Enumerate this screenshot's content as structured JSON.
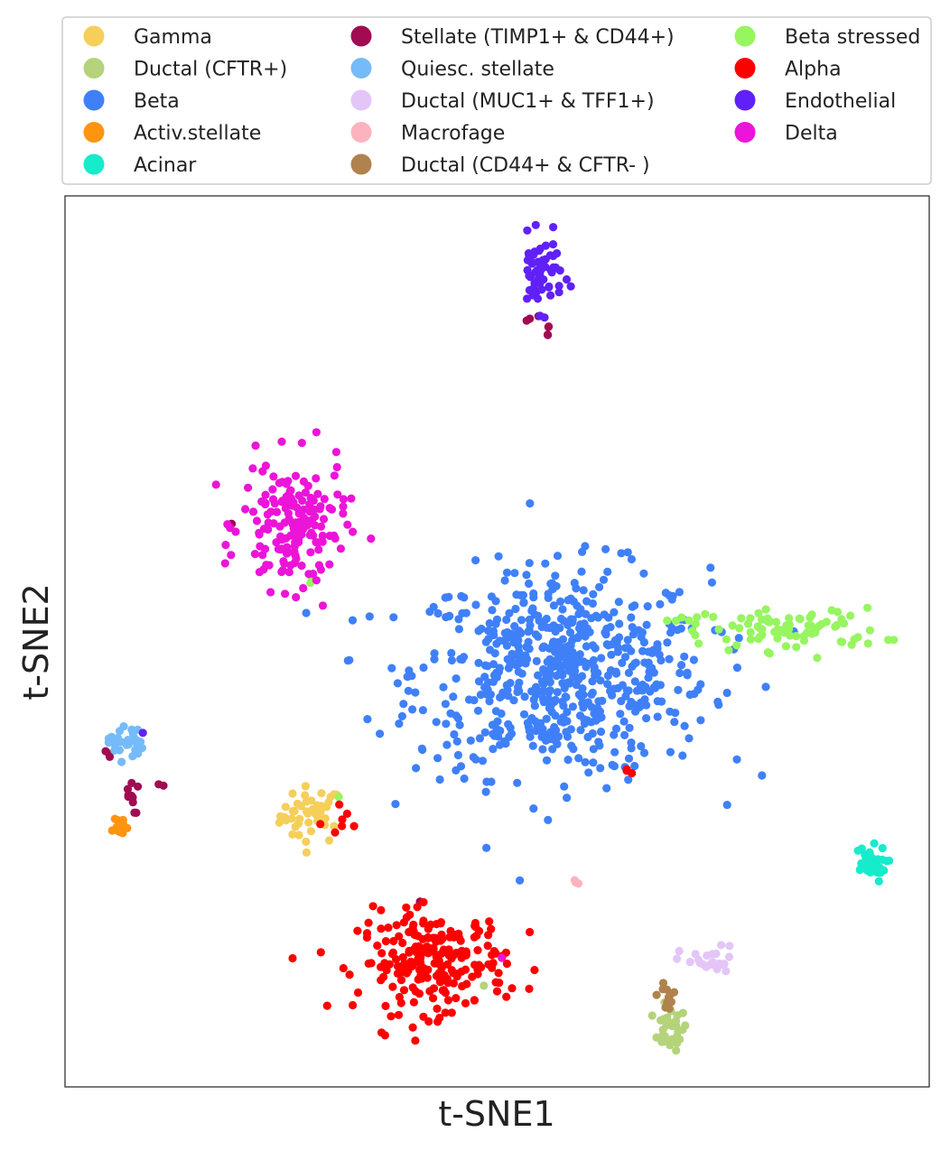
{
  "chart_data": {
    "type": "scatter",
    "xlabel": "t-SNE1",
    "ylabel": "t-SNE2",
    "xlim": [
      0,
      100
    ],
    "ylim": [
      0,
      100
    ],
    "grid": false,
    "ticks": false,
    "legend_position": "top (outside plot, 3 columns)",
    "series": [
      {
        "name": "Gamma",
        "color": "#F5CF5A",
        "clusters": [
          {
            "center": [
              28.5,
              30.5
            ],
            "spread": [
              1.8,
              1.6
            ],
            "count": 45
          }
        ]
      },
      {
        "name": "Ductal (CFTR+)",
        "color": "#B4D37A",
        "clusters": [
          {
            "center": [
              70.0,
              6.5
            ],
            "spread": [
              1.0,
              1.2
            ],
            "count": 30
          },
          {
            "center": [
              48.5,
              11.5
            ],
            "spread": [
              0.3,
              0.3
            ],
            "count": 1
          }
        ]
      },
      {
        "name": "Beta",
        "color": "#3F80F9",
        "clusters": [
          {
            "center": [
              57.5,
              46.5
            ],
            "spread": [
              8.5,
              5.8
            ],
            "count": 650
          }
        ]
      },
      {
        "name": "Activ.stellate",
        "color": "#FF940F",
        "clusters": [
          {
            "center": [
              6.1,
              29.3
            ],
            "spread": [
              0.6,
              0.6
            ],
            "count": 16
          }
        ]
      },
      {
        "name": "Acinar",
        "color": "#16EBCC",
        "clusters": [
          {
            "center": [
              93.0,
              25.0
            ],
            "spread": [
              1.0,
              1.0
            ],
            "count": 35
          }
        ]
      },
      {
        "name": "Stellate (TIMP1+ & CD44+)",
        "color": "#A10B52",
        "clusters": [
          {
            "center": [
              7.5,
              32.6
            ],
            "spread": [
              0.5,
              1.0
            ],
            "count": 10
          },
          {
            "center": [
              11.2,
              33.9
            ],
            "spread": [
              0.2,
              0.2
            ],
            "count": 2
          },
          {
            "center": [
              5.2,
              37.3
            ],
            "spread": [
              0.3,
              0.2
            ],
            "count": 3
          },
          {
            "center": [
              19.2,
              63.0
            ],
            "spread": [
              0.2,
              0.2
            ],
            "count": 2
          },
          {
            "center": [
              53.9,
              86.3
            ],
            "spread": [
              0.4,
              0.2
            ],
            "count": 3
          },
          {
            "center": [
              55.7,
              85.0
            ],
            "spread": [
              0.2,
              0.4
            ],
            "count": 4
          },
          {
            "center": [
              41.1,
              21.1
            ],
            "spread": [
              0.2,
              0.2
            ],
            "count": 1
          }
        ]
      },
      {
        "name": "Quiesc. stellate",
        "color": "#75BBFA",
        "clusters": [
          {
            "center": [
              7.0,
              38.7
            ],
            "spread": [
              1.0,
              1.0
            ],
            "count": 30
          }
        ]
      },
      {
        "name": "Ductal (MUC1+ & TFF1+)",
        "color": "#E3C6F7",
        "clusters": [
          {
            "center": [
              74.5,
              14.0
            ],
            "spread": [
              1.7,
              0.9
            ],
            "count": 25
          }
        ]
      },
      {
        "name": "Macrofage",
        "color": "#FDB3BF",
        "clusters": [
          {
            "center": [
              59.2,
              22.9
            ],
            "spread": [
              0.2,
              0.3
            ],
            "count": 3
          }
        ]
      },
      {
        "name": "Ductal (CD44+ & CFTR- )",
        "color": "#B0824E",
        "clusters": [
          {
            "center": [
              69.8,
              10.2
            ],
            "spread": [
              0.6,
              0.9
            ],
            "count": 12
          }
        ]
      },
      {
        "name": "Beta stressed",
        "color": "#97F560",
        "clusters": [
          {
            "center": [
              84.5,
              51.3
            ],
            "spread": [
              5.0,
              1.2
            ],
            "count": 80
          },
          {
            "center": [
              28.5,
              56.5
            ],
            "spread": [
              0.2,
              0.4
            ],
            "count": 3
          },
          {
            "center": [
              72.0,
              52.0
            ],
            "spread": [
              1.2,
              0.8
            ],
            "count": 8
          },
          {
            "center": [
              31.6,
              32.9
            ],
            "spread": [
              0.2,
              0.2
            ],
            "count": 1
          }
        ]
      },
      {
        "name": "Alpha",
        "color": "#FF0000",
        "clusters": [
          {
            "center": [
              42.5,
              14.0
            ],
            "spread": [
              4.3,
              2.8
            ],
            "count": 230
          },
          {
            "center": [
              32.5,
              29.0
            ],
            "spread": [
              0.7,
              1.2
            ],
            "count": 6
          },
          {
            "center": [
              65.3,
              35.7
            ],
            "spread": [
              0.2,
              0.3
            ],
            "count": 3
          },
          {
            "center": [
              29.6,
              29.3
            ],
            "spread": [
              0.2,
              0.2
            ],
            "count": 1
          }
        ]
      },
      {
        "name": "Endothelial",
        "color": "#6021F8",
        "clusters": [
          {
            "center": [
              55.0,
              91.3
            ],
            "spread": [
              1.3,
              2.0
            ],
            "count": 60
          },
          {
            "center": [
              9.0,
              39.8
            ],
            "spread": [
              0.2,
              0.2
            ],
            "count": 1
          }
        ]
      },
      {
        "name": "Delta",
        "color": "#EC14D8",
        "clusters": [
          {
            "center": [
              26.5,
              63.0
            ],
            "spread": [
              3.0,
              3.6
            ],
            "count": 170
          },
          {
            "center": [
              50.5,
              14.8
            ],
            "spread": [
              0.2,
              0.2
            ],
            "count": 1
          }
        ]
      }
    ]
  }
}
